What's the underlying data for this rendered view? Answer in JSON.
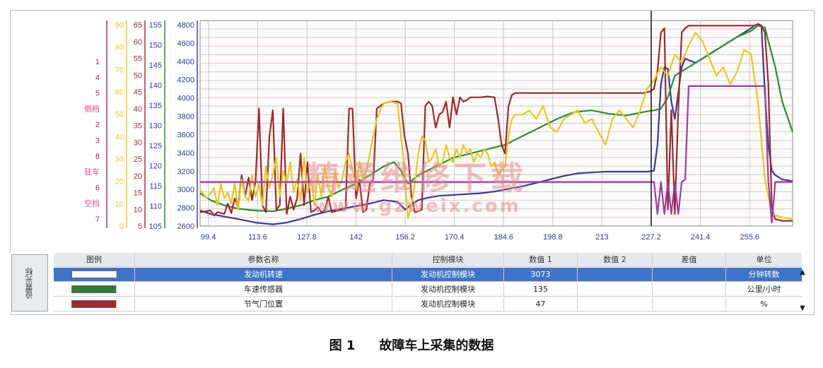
{
  "chart_data": {
    "type": "line",
    "x_ticks": [
      "99.4",
      "113.6",
      "127.8",
      "142",
      "156.2",
      "170.4",
      "184.6",
      "198.8",
      "213",
      "227.2",
      "241.4",
      "255.6"
    ],
    "xlim": [
      97,
      268
    ],
    "rpm_axis": {
      "ticks": [
        "4800",
        "4600",
        "4400",
        "4200",
        "4000",
        "3800",
        "3600",
        "3400",
        "3200",
        "3000",
        "2800",
        "2600"
      ],
      "ylim": [
        2460,
        4840
      ]
    },
    "speed_axis": {
      "ticks": [
        "155",
        "150",
        "145",
        "140",
        "135",
        "130",
        "125",
        "120",
        "115",
        "110",
        "105"
      ],
      "ylim": [
        105,
        158
      ]
    },
    "pct_axis": {
      "ticks": [
        "65",
        "60",
        "55",
        "50",
        "45",
        "40",
        "35",
        "30",
        "25",
        "20",
        "15",
        "10",
        "5"
      ],
      "ylim": [
        5,
        68
      ]
    },
    "yellow_axis": {
      "ticks": [
        "90",
        "80",
        "70",
        "60",
        "50",
        "40",
        "30",
        "20",
        "10",
        "0"
      ],
      "ylim": [
        0,
        92
      ]
    },
    "gear_axis": {
      "labels": [
        {
          "text": "1",
          "color": "#a2205f"
        },
        {
          "text": "4",
          "color": "#a2205f"
        },
        {
          "text": "5",
          "color": "#a2205f"
        },
        {
          "text": "倒档",
          "color": "#d64a8a"
        },
        {
          "text": "2",
          "color": "#a2205f"
        },
        {
          "text": "3",
          "color": "#a2205f"
        },
        {
          "text": "8",
          "color": "#a2205f"
        },
        {
          "text": "驻车",
          "color": "#d64a8a"
        },
        {
          "text": "6",
          "color": "#a2205f"
        },
        {
          "text": "空档",
          "color": "#d64a8a"
        },
        {
          "text": "7",
          "color": "#a2205f"
        }
      ]
    },
    "cursor_x": 227.2,
    "series": [
      {
        "name": "发动机转速",
        "color": "#3c3898",
        "x": [
          97,
          100,
          104,
          108,
          113,
          118,
          122,
          126,
          130,
          134,
          138,
          142,
          146,
          150,
          154,
          156.2,
          158,
          160,
          163,
          166,
          170,
          174,
          178,
          182,
          186,
          190,
          194,
          198,
          202,
          206,
          210,
          214,
          218,
          222,
          226,
          228,
          229,
          230,
          231,
          232,
          233,
          234,
          235,
          236,
          237,
          238,
          240,
          242,
          244,
          246,
          248,
          250,
          252,
          254,
          256,
          257,
          258,
          259,
          260,
          261,
          262,
          263,
          265,
          268
        ],
        "y": [
          2640,
          2600,
          2570,
          2540,
          2500,
          2480,
          2500,
          2540,
          2590,
          2630,
          2660,
          2690,
          2720,
          2760,
          2740,
          2650,
          2710,
          2760,
          2790,
          2810,
          2820,
          2830,
          2840,
          2860,
          2890,
          2920,
          2960,
          3000,
          3040,
          3070,
          3080,
          3090,
          3090,
          3090,
          3090,
          3100,
          3400,
          4100,
          4300,
          4280,
          3900,
          3700,
          4000,
          4300,
          4400,
          4380,
          4350,
          4400,
          4450,
          4500,
          4550,
          4600,
          4650,
          4700,
          4750,
          4780,
          4800,
          4780,
          4000,
          3400,
          3100,
          3050,
          3000,
          2980
        ]
      },
      {
        "name": "车速传感器",
        "color": "#2e8b2e",
        "x": [
          97,
          100,
          104,
          108,
          113,
          118,
          122,
          126,
          130,
          134,
          138,
          142,
          146,
          150,
          153,
          155,
          157,
          160,
          165,
          170,
          175,
          180,
          185,
          190,
          195,
          200,
          205,
          210,
          215,
          220,
          225,
          228,
          230,
          232,
          234,
          236,
          238,
          240,
          244,
          248,
          252,
          256,
          258,
          260,
          261,
          263,
          265,
          268
        ],
        "y": [
          2840,
          2760,
          2700,
          2660,
          2640,
          2630,
          2660,
          2700,
          2760,
          2800,
          2880,
          2950,
          3050,
          3150,
          3200,
          3100,
          2950,
          3050,
          3150,
          3250,
          3300,
          3350,
          3400,
          3500,
          3600,
          3700,
          3780,
          3800,
          3760,
          3740,
          3780,
          3800,
          3820,
          3950,
          4200,
          4250,
          4300,
          4350,
          4450,
          4550,
          4650,
          4720,
          4780,
          4760,
          4600,
          4300,
          3900,
          3550
        ]
      },
      {
        "name": "节气门位置",
        "color": "#a0282a",
        "x": [
          97,
          100,
          101,
          102,
          104,
          105,
          106,
          107,
          108,
          109,
          110,
          111,
          112,
          113,
          114,
          115,
          116,
          117,
          118,
          119,
          120,
          121,
          122,
          123,
          124,
          125,
          126,
          127,
          128,
          129,
          130,
          131,
          132,
          133,
          134,
          135,
          137,
          139,
          140,
          141,
          142,
          143,
          144,
          145,
          146,
          147,
          148,
          150,
          152,
          154,
          155,
          156,
          157,
          158,
          159,
          160,
          161,
          162,
          163,
          164,
          165,
          166,
          167,
          168,
          169,
          170,
          171,
          172,
          173,
          174,
          175,
          176,
          178,
          180,
          182,
          183,
          184,
          185,
          186,
          187,
          188,
          190,
          195,
          200,
          205,
          210,
          215,
          220,
          225,
          227,
          228,
          229,
          230,
          231,
          232,
          233,
          234,
          235,
          236,
          237,
          238,
          240,
          245,
          250,
          255,
          257,
          258,
          259,
          260,
          261,
          262,
          263,
          265,
          268
        ],
        "y": [
          2620,
          2640,
          2580,
          2620,
          2600,
          2720,
          2610,
          2780,
          2680,
          3050,
          2800,
          3020,
          2760,
          2980,
          3820,
          2700,
          2620,
          3500,
          3800,
          2650,
          2700,
          3820,
          2600,
          2800,
          2650,
          2780,
          3300,
          2700,
          3200,
          2620,
          2640,
          2680,
          2620,
          2640,
          2800,
          2620,
          2640,
          2660,
          3820,
          3820,
          2780,
          3000,
          2620,
          2650,
          2950,
          3000,
          3820,
          3880,
          3900,
          3900,
          3880,
          3500,
          3300,
          2800,
          2620,
          2630,
          2650,
          3850,
          3900,
          3850,
          3600,
          3750,
          3780,
          3900,
          3600,
          3950,
          3750,
          3950,
          3900,
          3920,
          3950,
          3950,
          3950,
          3960,
          3950,
          3700,
          3400,
          3300,
          3850,
          3980,
          4000,
          4000,
          4000,
          4000,
          4000,
          4000,
          4000,
          4000,
          4000,
          4020,
          4050,
          4250,
          4700,
          4750,
          2650,
          3800,
          2600,
          3800,
          4700,
          4750,
          4780,
          4780,
          4780,
          4780,
          4780,
          4780,
          4800,
          4780,
          4700,
          4100,
          2660,
          2540,
          2520,
          2520
        ]
      },
      {
        "name": "",
        "color": "#e6c91c",
        "x": [
          97,
          99,
          101,
          102,
          103,
          104,
          105,
          106,
          107,
          108,
          109,
          110,
          111,
          112,
          113,
          114,
          115,
          116,
          117,
          118,
          119,
          120,
          121,
          122,
          123,
          124,
          125,
          126,
          127,
          128,
          129,
          130,
          131,
          132,
          133,
          134,
          135,
          136,
          137,
          138,
          139,
          140,
          141,
          142,
          143,
          144,
          145,
          146,
          147,
          148,
          149,
          150,
          152,
          154,
          155,
          156,
          157,
          158,
          159,
          160,
          161,
          162,
          163,
          164,
          165,
          166,
          167,
          168,
          169,
          170,
          171,
          172,
          173,
          174,
          175,
          176,
          177,
          178,
          179,
          180,
          181,
          182,
          183,
          184,
          185,
          186,
          187,
          188,
          190,
          192,
          194,
          196,
          198,
          200,
          202,
          204,
          206,
          208,
          210,
          212,
          214,
          216,
          218,
          220,
          222,
          224,
          226,
          228,
          230,
          232,
          234,
          236,
          238,
          240,
          242,
          244,
          246,
          248,
          250,
          252,
          254,
          256,
          258,
          260,
          262,
          265,
          268
        ],
        "y": [
          2880,
          2780,
          2900,
          2700,
          2950,
          2780,
          2850,
          2720,
          2950,
          2650,
          3000,
          2800,
          2750,
          3050,
          2800,
          2950,
          2700,
          3150,
          2900,
          3050,
          3250,
          2800,
          3100,
          2950,
          3200,
          2850,
          3000,
          2750,
          3250,
          2850,
          3000,
          2700,
          3050,
          2800,
          3150,
          2900,
          2800,
          3100,
          2900,
          3000,
          3200,
          3300,
          3100,
          2900,
          3200,
          3000,
          3100,
          3300,
          3500,
          3700,
          3800,
          3880,
          3900,
          3880,
          3500,
          3100,
          2550,
          2700,
          2950,
          3300,
          3500,
          3450,
          3200,
          3250,
          3350,
          3150,
          3200,
          3400,
          3250,
          3200,
          3350,
          3250,
          3400,
          3300,
          3350,
          3200,
          3300,
          3250,
          3350,
          3300,
          3150,
          3200,
          3050,
          3100,
          3150,
          3500,
          3700,
          3750,
          3750,
          3800,
          3700,
          3850,
          3600,
          3550,
          3700,
          3750,
          3800,
          3650,
          3700,
          3550,
          3400,
          3700,
          3800,
          3700,
          3600,
          3800,
          4050,
          4150,
          4300,
          4200,
          4450,
          4350,
          4550,
          4700,
          4600,
          4400,
          4200,
          4300,
          4100,
          4250,
          4500,
          4450,
          3900,
          3000,
          2600,
          2560,
          2540
        ]
      },
      {
        "name": "",
        "color": "#9a3ba8",
        "x": [
          97,
          227.2,
          228,
          229,
          230,
          231,
          232,
          233,
          234,
          235,
          236,
          237,
          238,
          240,
          245,
          250,
          255,
          256,
          257,
          258,
          259,
          260,
          261,
          262,
          263,
          265,
          268
        ],
        "y": [
          2970,
          2970,
          2970,
          2600,
          2970,
          2600,
          2970,
          2600,
          2970,
          2600,
          2970,
          3000,
          4080,
          4080,
          4080,
          4080,
          4080,
          4080,
          4080,
          4080,
          4080,
          4080,
          2970,
          2500,
          2970,
          2970,
          2970
        ]
      }
    ]
  },
  "table": {
    "side_label": "设置光标",
    "headers": [
      "图例",
      "参数名称",
      "控制模块",
      "数值 1",
      "数值 2",
      "差值",
      "单位"
    ],
    "rows": [
      {
        "swatch": "#ffffff",
        "name": "发动机转速",
        "module": "发动机控制模块",
        "value1": "3073",
        "value2": "",
        "diff": "",
        "unit": "分钟转数",
        "selected": true
      },
      {
        "swatch": "#2e7d32",
        "name": "车速传感器",
        "module": "发动机控制模块",
        "value1": "135",
        "value2": "",
        "diff": "",
        "unit": "公里/小时",
        "selected": false
      },
      {
        "swatch": "#a0282a",
        "name": "节气门位置",
        "module": "发动机控制模块",
        "value1": "47",
        "value2": "",
        "diff": "",
        "unit": "%",
        "selected": false
      }
    ],
    "scroll_up": "▲",
    "scroll_down": "▼"
  },
  "watermark": {
    "line1": "精通维修下载",
    "line2": "www.gzweix.com",
    "color": "#e58a8a"
  },
  "caption": {
    "figure": "图 1",
    "title": "故障车上采集的数据"
  }
}
